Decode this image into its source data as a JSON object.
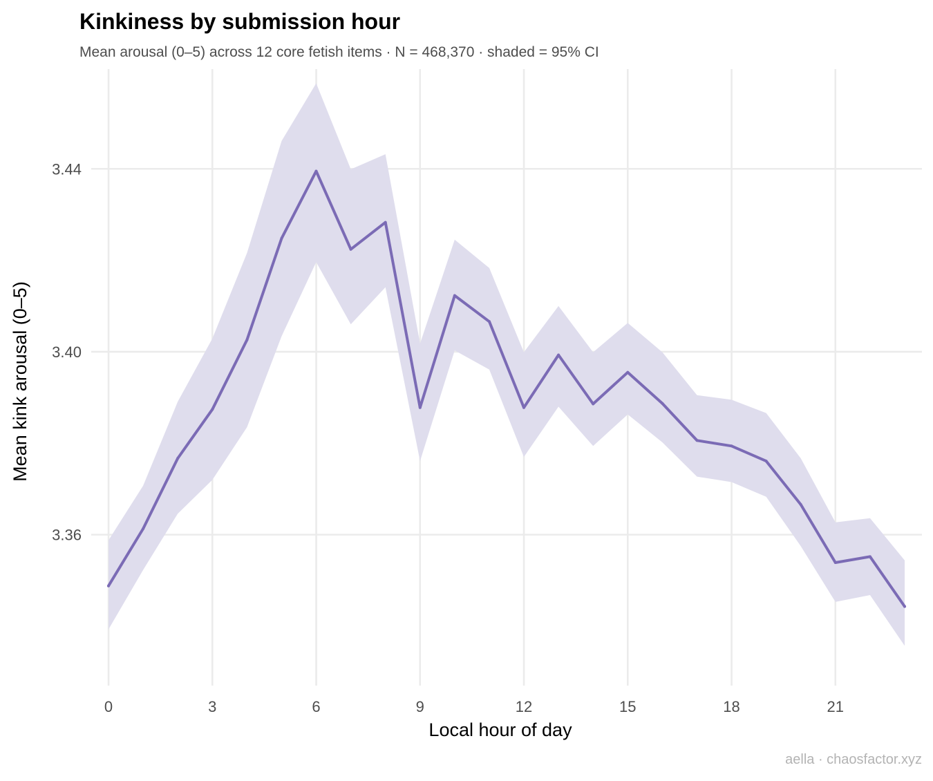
{
  "chart_data": {
    "type": "line",
    "title": "Kinkiness by submission hour",
    "subtitle": "Mean arousal (0–5) across 12 core fetish items · N = 468,370 · shaded = 95% CI",
    "xlabel": "Local hour of day",
    "ylabel": "Mean kink arousal (0–5)",
    "caption": "aella · chaosfactor.xyz",
    "x_ticks": [
      0,
      3,
      6,
      9,
      12,
      15,
      18,
      21
    ],
    "x_tick_labels": [
      "0",
      "3",
      "6",
      "9",
      "12",
      "15",
      "18",
      "21"
    ],
    "y_ticks": [
      3.36,
      3.4,
      3.44
    ],
    "y_tick_labels": [
      "3.36",
      "3.40",
      "3.44"
    ],
    "xlim": [
      -0.5,
      23.5
    ],
    "ylim": [
      3.327,
      3.4618
    ],
    "grid": true,
    "legend": "none",
    "colors": {
      "line": "#7b6bb5",
      "band": "#dfdded",
      "grid": "#ebebeb"
    },
    "series": [
      {
        "x": [
          0,
          1,
          2,
          3,
          4,
          5,
          6,
          7,
          8,
          9,
          10,
          11,
          12,
          13,
          14,
          15,
          16,
          17,
          18,
          19,
          20,
          21,
          22,
          23
        ],
        "y": [
          3.3488,
          3.3613,
          3.3767,
          3.3874,
          3.4026,
          3.4248,
          3.4395,
          3.4224,
          3.4283,
          3.3878,
          3.4123,
          3.4066,
          3.3878,
          3.3993,
          3.3886,
          3.3955,
          3.3887,
          3.3806,
          3.3794,
          3.3761,
          3.3666,
          3.3539,
          3.3552,
          3.3443
        ],
        "ci_low": [
          3.3393,
          3.3523,
          3.3646,
          3.372,
          3.3835,
          3.4034,
          3.4196,
          3.406,
          3.4141,
          3.3761,
          3.4003,
          3.3961,
          3.377,
          3.388,
          3.3794,
          3.3863,
          3.3802,
          3.3727,
          3.3715,
          3.3683,
          3.3575,
          3.3453,
          3.3468,
          3.3357
        ],
        "ci_high": [
          3.3588,
          3.3707,
          3.3891,
          3.4029,
          3.4216,
          3.4461,
          3.4587,
          3.4399,
          3.4432,
          3.4018,
          3.4245,
          3.4183,
          3.3999,
          3.41,
          3.3999,
          3.4063,
          3.3999,
          3.3905,
          3.3895,
          3.3866,
          3.3767,
          3.3627,
          3.3636,
          3.3544
        ]
      }
    ]
  }
}
